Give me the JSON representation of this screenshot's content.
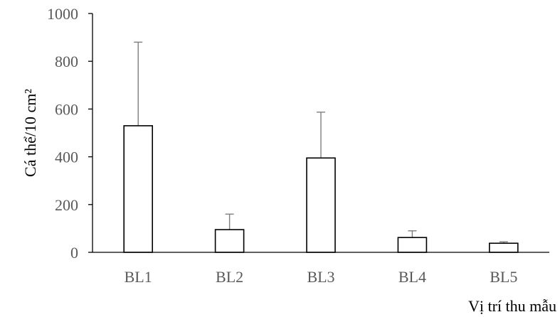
{
  "chart_data": {
    "type": "bar",
    "categories": [
      "BL1",
      "BL2",
      "BL3",
      "BL4",
      "BL5"
    ],
    "values": [
      530,
      95,
      395,
      62,
      38
    ],
    "error_upper": [
      350,
      65,
      192,
      28,
      6
    ],
    "title": "",
    "xlabel": "Vị trí thu mẫu",
    "ylabel": "Cá thể/10 cm²",
    "ylim": [
      0,
      1000
    ],
    "yticks": [
      0,
      200,
      400,
      600,
      800,
      1000
    ],
    "ytick_labels": [
      "0",
      "200",
      "400",
      "600",
      "800",
      "1000"
    ],
    "grid": false,
    "legend": "none",
    "colors": {
      "bar_fill": "#ffffff",
      "bar_stroke": "#000000",
      "error_bar": "#7f7f7f",
      "tick_text": "#595959"
    }
  }
}
